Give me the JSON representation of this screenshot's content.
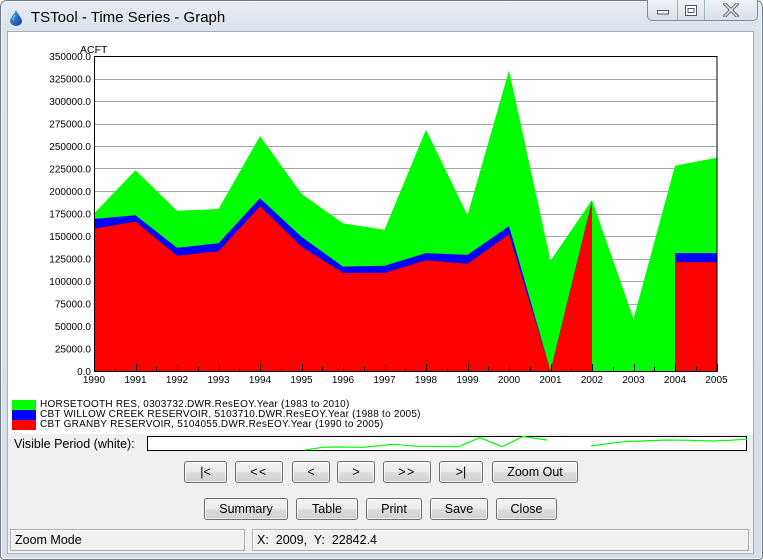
{
  "window": {
    "title": "TSTool - Time Series - Graph"
  },
  "chart_data": {
    "type": "area",
    "stacked": true,
    "title": "",
    "xlabel": "",
    "ylabel": "ACFT",
    "x": [
      1990,
      1991,
      1992,
      1993,
      1994,
      1995,
      1996,
      1997,
      1998,
      1999,
      2000,
      2001,
      2002,
      2003,
      2004,
      2005
    ],
    "xlim": [
      1990,
      2005
    ],
    "ylim": [
      0,
      350000
    ],
    "xticks": [
      "1990",
      "1991",
      "1992",
      "1993",
      "1994",
      "1995",
      "1996",
      "1997",
      "1998",
      "1999",
      "2000",
      "2001",
      "2002",
      "2003",
      "2004",
      "2005"
    ],
    "yticks": [
      "0.0",
      "25000.0",
      "50000.0",
      "75000.0",
      "100000.0",
      "125000.0",
      "150000.0",
      "175000.0",
      "200000.0",
      "225000.0",
      "250000.0",
      "275000.0",
      "300000.0",
      "325000.0",
      "350000.0"
    ],
    "grid": true,
    "legend_position": "bottom-left",
    "series": [
      {
        "name": "CBT GRANBY RESERVOIR, 5104055.DWR.ResEOY.Year (1990 to 2005)",
        "color": "#ff0000",
        "values": [
          158000,
          166000,
          128000,
          133000,
          183000,
          138000,
          109000,
          109000,
          123000,
          119000,
          152000,
          0,
          188000,
          null,
          121000,
          121000
        ]
      },
      {
        "name": "CBT WILLOW CREEK RESERVOIR, 5103710.DWR.ResEOY.Year (1988 to 2005)",
        "color": "#0000ff",
        "values": [
          11000,
          7000,
          9000,
          9000,
          9000,
          11000,
          7000,
          8000,
          8000,
          10000,
          9000,
          0,
          1000,
          null,
          10000,
          10000
        ]
      },
      {
        "name": "HORSETOOTH RES, 0303732.DWR.ResEOY.Year (1983 to 2010)",
        "color": "#00ff00",
        "values": [
          6000,
          50000,
          41000,
          38000,
          69000,
          48000,
          48000,
          40000,
          137000,
          44000,
          173000,
          122500,
          1000,
          58000,
          97000,
          106000
        ]
      }
    ]
  },
  "visible_period": {
    "label": "Visible Period (white):",
    "line_color": "#00ff00",
    "overview_segments": [
      [
        [
          158,
          14
        ],
        [
          176,
          11.3
        ],
        [
          190,
          11
        ],
        [
          216,
          11.3
        ],
        [
          246,
          8.3
        ],
        [
          270,
          10.3
        ],
        [
          283,
          10.3
        ],
        [
          300,
          10.7
        ],
        [
          311,
          10.7
        ],
        [
          333,
          1.7
        ],
        [
          355,
          10.7
        ],
        [
          376,
          0.5
        ],
        [
          386,
          2
        ],
        [
          400,
          4
        ]
      ],
      [
        [
          444,
          10
        ],
        [
          463,
          7.3
        ],
        [
          476,
          5.7
        ],
        [
          520,
          4
        ],
        [
          543,
          4.3
        ],
        [
          566,
          5
        ],
        [
          583,
          4.3
        ],
        [
          600,
          3
        ]
      ]
    ]
  },
  "navigation": {
    "first": "|<",
    "page_back": "<<",
    "back": "<",
    "forward": ">",
    "page_forward": ">>",
    "last": ">|",
    "zoom_out": "Zoom Out"
  },
  "actions": {
    "summary": "Summary",
    "table": "Table",
    "print": "Print",
    "save": "Save",
    "close": "Close"
  },
  "status": {
    "mode": "Zoom Mode",
    "coordinates": "X:  2009,  Y:  22842.4"
  }
}
